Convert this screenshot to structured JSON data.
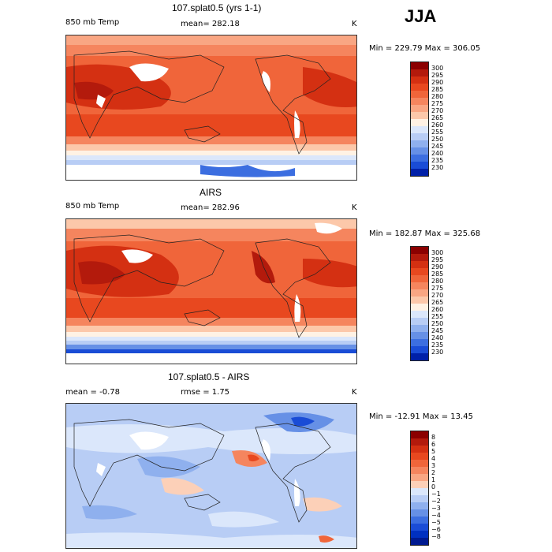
{
  "season": "JJA",
  "panels": [
    {
      "title": "107.splat0.5 (yrs 1-1)",
      "left_label": "850 mb Temp",
      "mid_label": "mean= 282.18",
      "unit": "K",
      "minmax": "Min = 229.79 Max = 306.05"
    },
    {
      "title": "AIRS",
      "left_label": "850 mb Temp",
      "mid_label": "mean= 282.96",
      "unit": "K",
      "minmax": "Min = 182.87 Max = 325.68"
    },
    {
      "title": "107.splat0.5 - AIRS",
      "left_label": "mean =  -0.78",
      "mid_label": "rmse =   1.75",
      "unit": "K",
      "minmax": "Min = -12.91 Max =  13.45"
    }
  ],
  "colorbars": {
    "temp": {
      "labels": [
        "300",
        "295",
        "290",
        "285",
        "280",
        "275",
        "270",
        "265",
        "260",
        "255",
        "250",
        "245",
        "240",
        "235",
        "230"
      ],
      "colors": [
        "#8b0000",
        "#b31a0c",
        "#d43012",
        "#e8481f",
        "#f0653a",
        "#f5855e",
        "#f9a683",
        "#fcc8aa",
        "#fff2e4",
        "#dbe7fb",
        "#b8cdf5",
        "#8fb0ee",
        "#6690e6",
        "#3c6ee0",
        "#1a4cd6",
        "#0020a8"
      ]
    },
    "diff": {
      "labels": [
        "8",
        "6",
        "5",
        "4",
        "3",
        "2",
        "1",
        "0",
        "−1",
        "−2",
        "−3",
        "−4",
        "−5",
        "−6",
        "−8"
      ],
      "colors": [
        "#8b0000",
        "#b31a0c",
        "#d43012",
        "#e8481f",
        "#f0653a",
        "#f5855e",
        "#f9a683",
        "#fcd0b8",
        "#dbe7fb",
        "#b8cdf5",
        "#8fb0ee",
        "#6690e6",
        "#3c6ee0",
        "#1a4cd6",
        "#0030c0",
        "#001a90"
      ]
    }
  }
}
